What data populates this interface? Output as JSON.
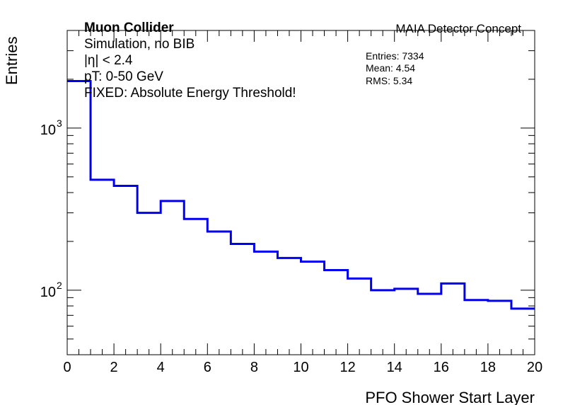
{
  "chart_data": {
    "type": "line",
    "style": "step-histogram",
    "x_label": "PFO Shower Start Layer",
    "y_label": "Entries",
    "x_range": [
      0,
      20
    ],
    "y_range": [
      40,
      4000
    ],
    "y_scale": "log",
    "x_ticks": [
      0,
      2,
      4,
      6,
      8,
      10,
      12,
      14,
      16,
      18,
      20
    ],
    "x_tick_labels": [
      "0",
      "2",
      "4",
      "6",
      "8",
      "10",
      "12",
      "14",
      "16",
      "18",
      "20"
    ],
    "y_major_ticks": [
      {
        "value": 100,
        "base": "10",
        "exp": "2"
      },
      {
        "value": 1000,
        "base": "10",
        "exp": "3"
      }
    ],
    "bins": {
      "edges": [
        0,
        1,
        2,
        3,
        4,
        5,
        6,
        7,
        8,
        9,
        10,
        11,
        12,
        13,
        14,
        15,
        16,
        17,
        18,
        19,
        20
      ],
      "values": [
        1950,
        480,
        440,
        300,
        355,
        275,
        230,
        193,
        173,
        158,
        150,
        133,
        118,
        100,
        102,
        95,
        110,
        87,
        86,
        77
      ]
    },
    "line_color": "#0000ee",
    "grid": false,
    "legend": "none",
    "annotations": {
      "experiment": "Muon Collider",
      "lines": [
        "Simulation, no BIB",
        "|η| < 2.4",
        "pT: 0-50 GeV",
        "FIXED: Absolute Energy Threshold!"
      ],
      "detector": "MAIA Detector Concept"
    },
    "stats": {
      "entries": "Entries: 7334",
      "mean": "Mean: 4.54",
      "rms": "RMS: 5.34"
    }
  }
}
